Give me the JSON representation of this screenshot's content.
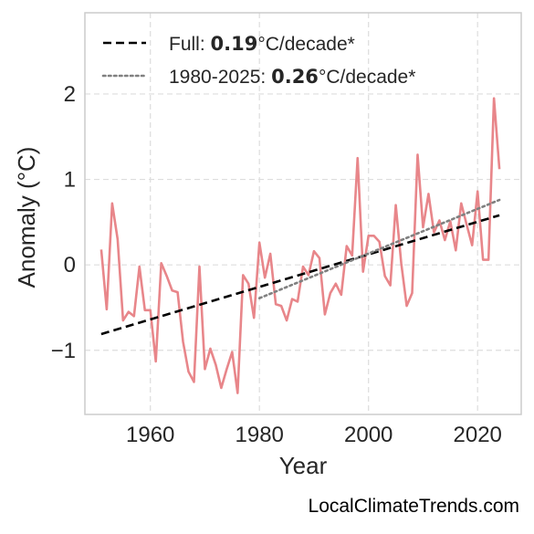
{
  "chart_data": {
    "type": "line",
    "x_label": "Year",
    "y_label": "Anomaly (°C)",
    "xlim": [
      1948,
      2028
    ],
    "ylim": [
      -1.75,
      2.95
    ],
    "x_ticks": [
      1960,
      1980,
      2000,
      2020
    ],
    "x_tick_labels": [
      "1960",
      "1980",
      "2000",
      "2020"
    ],
    "y_ticks": [
      -1,
      0,
      1,
      2
    ],
    "y_tick_labels": [
      "−1",
      "0",
      "1",
      "2"
    ],
    "grid": true,
    "legend_position": "top-left",
    "series": [
      {
        "kind": "observed",
        "color": "#e8868a",
        "x": [
          1951,
          1952,
          1953,
          1954,
          1955,
          1956,
          1957,
          1958,
          1959,
          1960,
          1961,
          1962,
          1963,
          1964,
          1965,
          1966,
          1967,
          1968,
          1969,
          1970,
          1971,
          1972,
          1973,
          1974,
          1975,
          1976,
          1977,
          1978,
          1979,
          1980,
          1981,
          1982,
          1983,
          1984,
          1985,
          1986,
          1987,
          1988,
          1989,
          1990,
          1991,
          1992,
          1993,
          1994,
          1995,
          1996,
          1997,
          1998,
          1999,
          2000,
          2001,
          2002,
          2003,
          2004,
          2005,
          2006,
          2007,
          2008,
          2009,
          2010,
          2011,
          2012,
          2013,
          2014,
          2015,
          2016,
          2017,
          2018,
          2019,
          2020,
          2021,
          2022,
          2023,
          2024
        ],
        "y": [
          0.18,
          -0.52,
          0.72,
          0.3,
          -0.65,
          -0.55,
          -0.6,
          -0.02,
          -0.53,
          -0.53,
          -1.13,
          0.02,
          -0.13,
          -0.3,
          -0.32,
          -0.9,
          -1.25,
          -1.37,
          -0.02,
          -1.22,
          -0.98,
          -1.17,
          -1.44,
          -1.22,
          -1.02,
          -1.5,
          -0.12,
          -0.22,
          -0.62,
          0.26,
          -0.15,
          0.13,
          -0.46,
          -0.48,
          -0.65,
          -0.4,
          -0.43,
          -0.02,
          -0.12,
          0.16,
          0.08,
          -0.58,
          -0.33,
          -0.22,
          -0.35,
          0.22,
          0.11,
          1.25,
          -0.08,
          0.34,
          0.34,
          0.27,
          -0.13,
          -0.24,
          0.7,
          0.02,
          -0.48,
          -0.33,
          1.29,
          0.44,
          0.83,
          0.38,
          0.52,
          0.29,
          0.51,
          0.17,
          0.72,
          0.47,
          0.23,
          0.86,
          0.06,
          0.06,
          1.95,
          1.12
        ]
      },
      {
        "kind": "trend-full",
        "color": "#000000",
        "dash": "dashed",
        "x": [
          1951,
          2024
        ],
        "y": [
          -0.81,
          0.58
        ]
      },
      {
        "kind": "trend-recent",
        "color": "#808080",
        "dash": "dotted",
        "x": [
          1980,
          2024
        ],
        "y": [
          -0.39,
          0.76
        ]
      }
    ],
    "legend": [
      {
        "prefix": "Full: ",
        "value": "0.19",
        "suffix": "°C/decade*",
        "style": "dashed",
        "color": "#000000"
      },
      {
        "prefix": "1980-2025: ",
        "value": "0.26",
        "suffix": "°C/decade*",
        "style": "dotted",
        "color": "#808080"
      }
    ]
  },
  "watermark": "LocalClimateTrends.com"
}
